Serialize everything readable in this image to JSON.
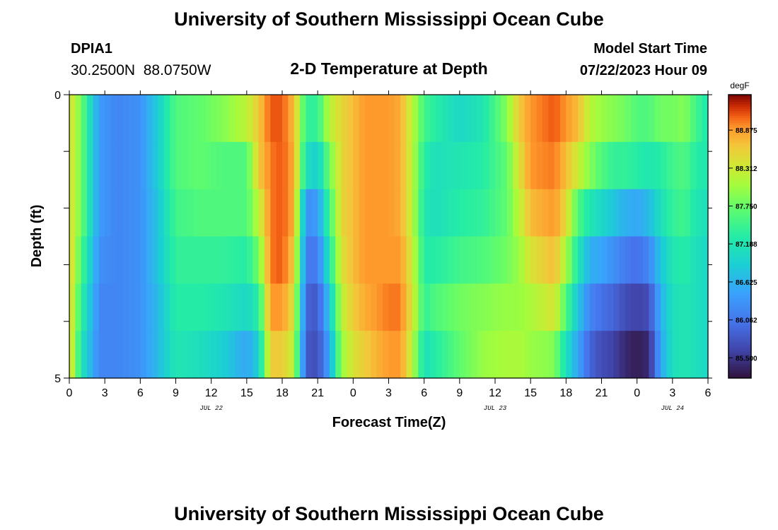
{
  "header": {
    "title": "University of Southern Mississippi Ocean Cube",
    "station_id": "DPIA1",
    "coordinates": "30.2500N  88.0750W",
    "subtitle": "2-D Temperature at Depth",
    "model_start_label": "Model Start Time",
    "model_start_value": "07/22/2023 Hour 09"
  },
  "footer": {
    "title": "University of Southern Mississippi Ocean Cube"
  },
  "chart_data": {
    "type": "heatmap",
    "title": "2-D Temperature at Depth",
    "xlabel": "Forecast Time(Z)",
    "ylabel": "Depth (ft)",
    "colorbar_label": "degF",
    "colorbar_range": [
      85.2,
      89.4
    ],
    "colorbar_ticks": [
      "88.875",
      "88.312",
      "87.750",
      "87.188",
      "86.625",
      "86.062",
      "85.500"
    ],
    "x_range_hours": [
      0,
      54
    ],
    "x_tick_labels": [
      "0",
      "3",
      "6",
      "9",
      "12",
      "15",
      "18",
      "21",
      "0",
      "3",
      "6",
      "9",
      "12",
      "15",
      "18",
      "21",
      "0",
      "3",
      "6"
    ],
    "date_labels": [
      {
        "text": "JUL 22",
        "at_tick": 4
      },
      {
        "text": "JUL 23",
        "at_tick": 12
      },
      {
        "text": "JUL 24",
        "at_tick": 17
      }
    ],
    "y_range": [
      0,
      5
    ],
    "y_tick_labels": [
      "0",
      "5"
    ],
    "depth_rows": 6,
    "keyframes": [
      [
        0,
        [
          88.5,
          88.5,
          88.5,
          88.6,
          88.6,
          88.6
        ]
      ],
      [
        1,
        [
          87.8,
          87.8,
          87.8,
          87.6,
          87.4,
          87.2
        ]
      ],
      [
        2.5,
        [
          86.4,
          86.4,
          86.4,
          86.3,
          86.2,
          86.2
        ]
      ],
      [
        4,
        [
          86.2,
          86.2,
          86.2,
          86.2,
          86.2,
          86.2
        ]
      ],
      [
        6,
        [
          86.3,
          86.3,
          86.3,
          86.3,
          86.3,
          86.3
        ]
      ],
      [
        7.5,
        [
          86.9,
          86.9,
          86.8,
          86.8,
          86.7,
          86.7
        ]
      ],
      [
        9,
        [
          87.6,
          87.6,
          87.5,
          87.4,
          87.3,
          87.2
        ]
      ],
      [
        11,
        [
          87.7,
          87.7,
          87.6,
          87.4,
          87.3,
          87.1
        ]
      ],
      [
        13,
        [
          87.9,
          87.6,
          87.6,
          87.4,
          87.2,
          86.9
        ]
      ],
      [
        15,
        [
          88.2,
          87.6,
          87.6,
          87.3,
          87.0,
          86.5
        ]
      ],
      [
        16,
        [
          88.6,
          88.6,
          88.2,
          87.8,
          87.3,
          86.9
        ]
      ],
      [
        17,
        [
          89.1,
          89.0,
          89.0,
          89.0,
          88.9,
          88.6
        ]
      ],
      [
        18,
        [
          89.1,
          89.1,
          89.1,
          89.1,
          88.9,
          88.6
        ]
      ],
      [
        19,
        [
          88.7,
          88.8,
          88.8,
          88.6,
          88.4,
          88.2
        ]
      ],
      [
        20,
        [
          87.4,
          87.1,
          86.3,
          86.1,
          85.9,
          85.8
        ]
      ],
      [
        21,
        [
          87.4,
          86.9,
          86.4,
          86.1,
          85.8,
          85.7
        ]
      ],
      [
        22,
        [
          88.2,
          87.8,
          87.5,
          87.2,
          86.8,
          86.5
        ]
      ],
      [
        23,
        [
          88.5,
          88.5,
          88.5,
          88.4,
          88.2,
          88.0
        ]
      ],
      [
        24,
        [
          88.7,
          88.7,
          88.7,
          88.7,
          88.6,
          88.4
        ]
      ],
      [
        25,
        [
          88.9,
          88.9,
          88.9,
          88.9,
          88.8,
          88.6
        ]
      ],
      [
        27,
        [
          88.9,
          88.9,
          88.9,
          88.9,
          89.0,
          88.9
        ]
      ],
      [
        28,
        [
          88.8,
          88.8,
          88.8,
          88.9,
          89.0,
          88.9
        ]
      ],
      [
        29,
        [
          88.2,
          88.2,
          88.2,
          88.3,
          88.4,
          88.2
        ]
      ],
      [
        30,
        [
          87.5,
          87.3,
          87.2,
          87.3,
          87.4,
          87.1
        ]
      ],
      [
        31,
        [
          87.3,
          87.1,
          87.1,
          87.3,
          87.6,
          87.3
        ]
      ],
      [
        33,
        [
          87.0,
          87.2,
          87.3,
          87.5,
          87.8,
          87.7
        ]
      ],
      [
        35,
        [
          87.2,
          87.3,
          87.4,
          87.6,
          87.9,
          88.0
        ]
      ],
      [
        37,
        [
          87.9,
          87.7,
          87.7,
          87.8,
          88.0,
          88.1
        ]
      ],
      [
        38,
        [
          88.6,
          88.4,
          88.2,
          88.0,
          88.0,
          88.1
        ]
      ],
      [
        39,
        [
          88.9,
          88.9,
          88.7,
          88.4,
          88.1,
          88.0
        ]
      ],
      [
        41,
        [
          89.1,
          89.0,
          88.9,
          88.7,
          88.4,
          87.9
        ]
      ],
      [
        42,
        [
          88.9,
          88.7,
          88.5,
          88.1,
          87.6,
          87.1
        ]
      ],
      [
        43,
        [
          88.7,
          88.3,
          87.6,
          87.2,
          86.8,
          86.5
        ]
      ],
      [
        44,
        [
          88.2,
          87.9,
          87.2,
          86.6,
          86.2,
          85.9
        ]
      ],
      [
        45,
        [
          88.0,
          87.6,
          87.0,
          86.5,
          86.0,
          85.7
        ]
      ],
      [
        46,
        [
          87.9,
          87.4,
          86.8,
          86.3,
          85.9,
          85.6
        ]
      ],
      [
        47,
        [
          87.8,
          87.4,
          86.6,
          86.1,
          85.7,
          85.4
        ]
      ],
      [
        48,
        [
          87.6,
          87.3,
          86.5,
          86.0,
          85.6,
          85.3
        ]
      ],
      [
        49,
        [
          87.6,
          87.2,
          86.7,
          86.2,
          85.7,
          85.4
        ]
      ],
      [
        50,
        [
          87.8,
          87.3,
          87.1,
          86.8,
          86.6,
          86.5
        ]
      ],
      [
        51,
        [
          87.8,
          87.5,
          87.4,
          87.2,
          87.1,
          87.1
        ]
      ],
      [
        52,
        [
          87.9,
          87.6,
          87.5,
          87.3,
          87.2,
          87.2
        ]
      ],
      [
        53,
        [
          87.5,
          87.3,
          87.2,
          87.1,
          87.1,
          87.1
        ]
      ],
      [
        54,
        [
          87.2,
          87.2,
          87.1,
          87.0,
          87.0,
          87.0
        ]
      ]
    ]
  }
}
